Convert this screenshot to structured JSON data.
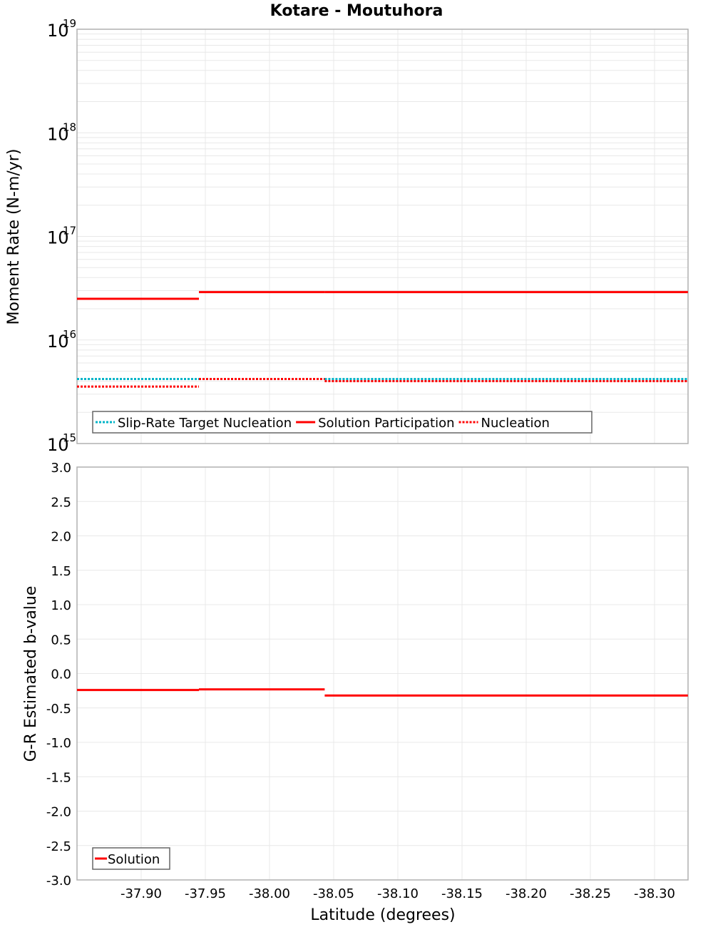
{
  "chart_data": [
    {
      "type": "line",
      "title": "Kotare - Moutuhora",
      "xlabel": "Latitude (degrees)",
      "ylabel": "Moment Rate (N-m/yr)",
      "yscale": "log",
      "ylim": [
        1000000000000000.0,
        1e+19
      ],
      "xlim": [
        -37.85,
        -38.326
      ],
      "y_tick_labels": [
        {
          "base": "10",
          "exp": "19"
        },
        {
          "base": "10",
          "exp": "18"
        },
        {
          "base": "10",
          "exp": "17"
        },
        {
          "base": "10",
          "exp": "16"
        },
        {
          "base": "10",
          "exp": "15"
        }
      ],
      "grid": true,
      "legend_position": "lower-left",
      "series": [
        {
          "name": "Slip-Rate Target Nucleation",
          "color": "#00b4c8",
          "style": "dotted",
          "segments": [
            {
              "x0": -37.85,
              "x1": -37.945,
              "y": 4200000000000000.0
            },
            {
              "x0": -37.945,
              "x1": -38.043,
              "y": 4200000000000000.0
            },
            {
              "x0": -38.043,
              "x1": -38.326,
              "y": 4200000000000000.0
            }
          ]
        },
        {
          "name": "Solution Participation",
          "color": "#ff0000",
          "style": "solid",
          "segments": [
            {
              "x0": -37.85,
              "x1": -37.945,
              "y": 2.5e+16
            },
            {
              "x0": -37.945,
              "x1": -38.043,
              "y": 2.9e+16
            },
            {
              "x0": -38.043,
              "x1": -38.326,
              "y": 2.9e+16
            }
          ]
        },
        {
          "name": "Nucleation",
          "color": "#ff0000",
          "style": "dotted",
          "segments": [
            {
              "x0": -37.85,
              "x1": -37.945,
              "y": 3550000000000000.0
            },
            {
              "x0": -37.945,
              "x1": -38.043,
              "y": 4200000000000000.0
            },
            {
              "x0": -38.043,
              "x1": -38.326,
              "y": 4000000000000000.0
            }
          ]
        }
      ]
    },
    {
      "type": "line",
      "title": "",
      "xlabel": "Latitude (degrees)",
      "ylabel": "G-R Estimated b-value",
      "ylim": [
        -3.0,
        3.0
      ],
      "xlim": [
        -37.85,
        -38.326
      ],
      "y_ticks": [
        "3.0",
        "2.5",
        "2.0",
        "1.5",
        "1.0",
        "0.5",
        "0.0",
        "-0.5",
        "-1.0",
        "-1.5",
        "-2.0",
        "-2.5",
        "-3.0"
      ],
      "x_ticks": [
        "-37.90",
        "-37.95",
        "-38.00",
        "-38.05",
        "-38.10",
        "-38.15",
        "-38.20",
        "-38.25",
        "-38.30"
      ],
      "grid": true,
      "legend_position": "lower-left",
      "series": [
        {
          "name": "Solution",
          "color": "#ff0000",
          "style": "solid",
          "segments": [
            {
              "x0": -37.85,
              "x1": -37.945,
              "y": -0.24
            },
            {
              "x0": -37.945,
              "x1": -38.043,
              "y": -0.23
            },
            {
              "x0": -38.043,
              "x1": -38.326,
              "y": -0.32
            }
          ]
        }
      ]
    }
  ]
}
